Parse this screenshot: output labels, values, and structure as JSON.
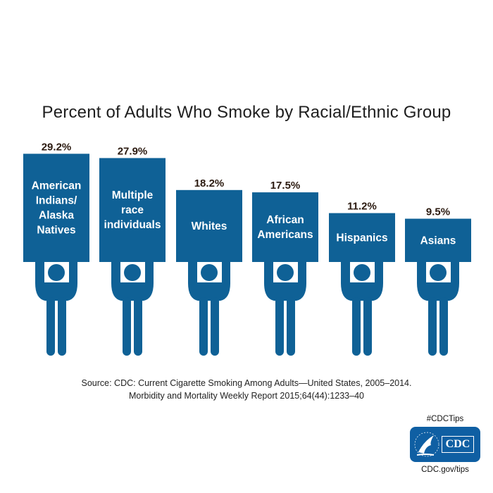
{
  "chart_data": {
    "type": "bar",
    "title": "Percent of Adults Who Smoke by Racial/Ethnic Group",
    "categories": [
      "American Indians/ Alaska Natives",
      "Multiple race individuals",
      "Whites",
      "African Americans",
      "Hispanics",
      "Asians"
    ],
    "category_lines": [
      [
        "American",
        "Indians/",
        "Alaska",
        "Natives"
      ],
      [
        "Multiple",
        "race",
        "individuals"
      ],
      [
        "Whites"
      ],
      [
        "African",
        "Americans"
      ],
      [
        "Hispanics"
      ],
      [
        "Asians"
      ]
    ],
    "values": [
      29.2,
      27.9,
      18.2,
      17.5,
      11.2,
      9.5
    ],
    "value_labels": [
      "29.2%",
      "27.9%",
      "18.2%",
      "17.5%",
      "11.2%",
      "9.5%"
    ],
    "unit": "%",
    "xlabel": "",
    "ylabel": "",
    "grid": false,
    "colors": {
      "bar": "#0f6196",
      "value_label": "#2b1a10",
      "bar_text": "#ffffff"
    }
  },
  "source": {
    "line1": "Source: CDC: Current Cigarette Smoking Among Adults—United States, 2005–2014.",
    "line2": "Morbidity and Mortality Weekly Report 2015;64(44):1233–40"
  },
  "branding": {
    "hashtag": "#CDCTips",
    "logo_text": "CDC",
    "url": "CDC.gov/tips",
    "logo_color": "#0f5fa3"
  }
}
